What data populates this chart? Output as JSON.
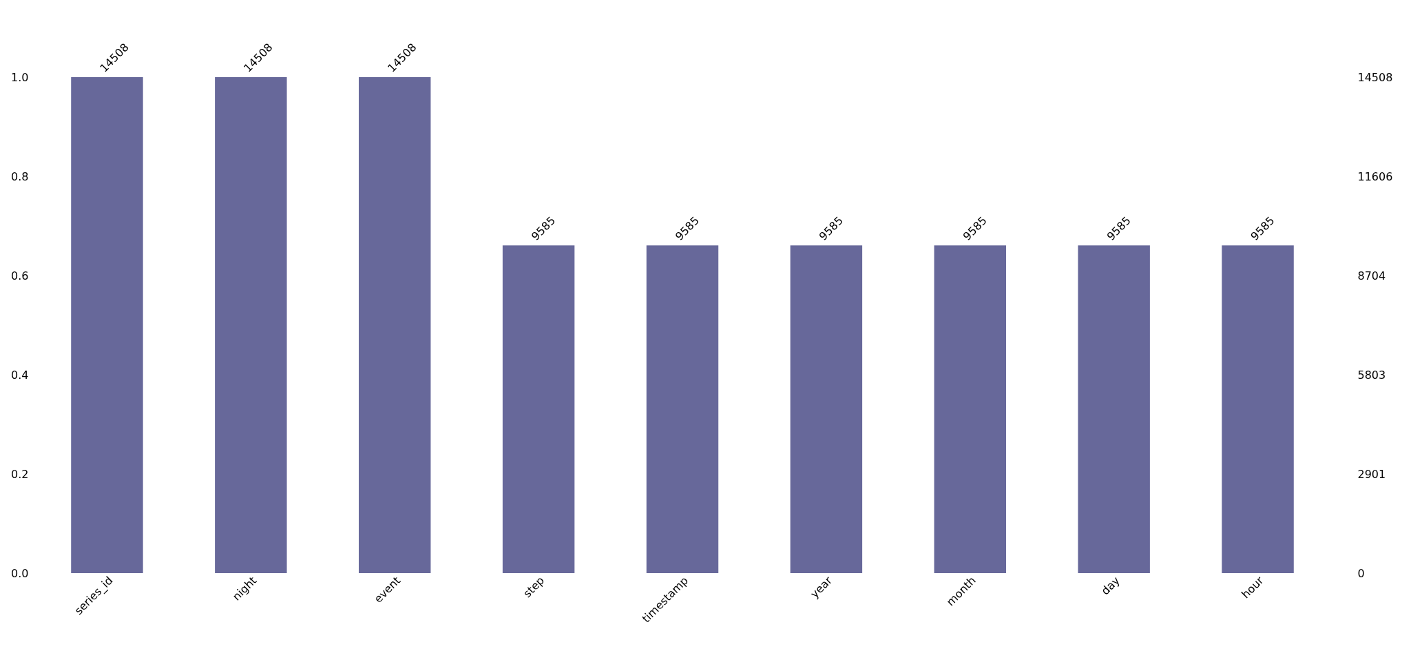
{
  "chart_data": {
    "type": "bar",
    "categories": [
      "series_id",
      "night",
      "event",
      "step",
      "timestamp",
      "year",
      "month",
      "day",
      "hour"
    ],
    "series": [
      {
        "color": "#67689a",
        "axis": "y2",
        "values": [
          14508,
          14508,
          14508,
          9585,
          9585,
          9585,
          9585,
          9585,
          9585
        ]
      }
    ],
    "ylim": [
      0,
      1
    ],
    "yticks": [
      {
        "value": 0,
        "label": "0.0"
      },
      {
        "value": 0.2,
        "label": "0.2"
      },
      {
        "value": 0.4,
        "label": "0.4"
      },
      {
        "value": 0.6,
        "label": "0.6"
      },
      {
        "value": 0.8,
        "label": "0.8"
      },
      {
        "value": 1,
        "label": "1.0"
      }
    ],
    "y2lim": [
      0,
      14508
    ],
    "y2ticks": [
      0,
      2901,
      5803,
      8704,
      11606,
      14508
    ],
    "data_labels": true,
    "grid": false
  }
}
